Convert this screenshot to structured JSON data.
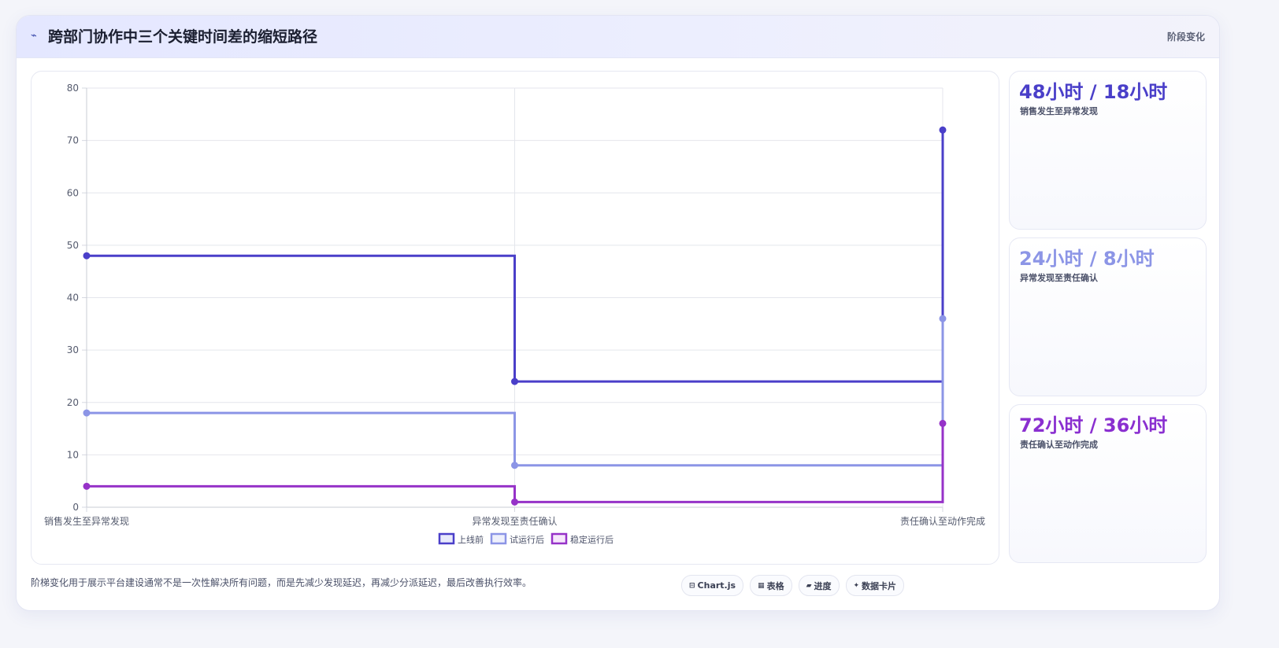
{
  "header": {
    "icon": "line-chart-icon",
    "title": "跨部门协作中三个关键时间差的缩短路径",
    "tag": "阶段变化"
  },
  "chart_data": {
    "type": "line",
    "stepped": true,
    "categories": [
      "销售发生至异常发现",
      "异常发现至责任确认",
      "责任确认至动作完成"
    ],
    "series": [
      {
        "name": "上线前",
        "values": [
          48,
          24,
          72
        ],
        "color": "#4a3fc9"
      },
      {
        "name": "试运行后",
        "values": [
          18,
          8,
          36
        ],
        "color": "#8c95e6"
      },
      {
        "name": "稳定运行后",
        "values": [
          4,
          1,
          16
        ],
        "color": "#9632c8"
      }
    ],
    "ylim": [
      0,
      80
    ],
    "yticks": [
      0,
      10,
      20,
      30,
      40,
      50,
      60,
      70,
      80
    ],
    "grid": true,
    "legend_position": "bottom"
  },
  "stats": [
    {
      "value": "48小时 / 18小时",
      "label": "销售发生至异常发现",
      "color": "#4a3fc9"
    },
    {
      "value": "24小时 / 8小时",
      "label": "异常发现至责任确认",
      "color": "#8c95e6"
    },
    {
      "value": "72小时 / 36小时",
      "label": "责任确认至动作完成",
      "color": "#8a2fd0"
    }
  ],
  "footer": {
    "note": "阶梯变化用于展示平台建设通常不是一次性解决所有问题，而是先减少发现延迟，再减少分派延迟，最后改善执行效率。"
  },
  "chips": [
    {
      "icon": "chart-icon",
      "glyph": "⊟",
      "label": "Chart.js"
    },
    {
      "icon": "table-icon",
      "glyph": "▦",
      "label": "表格"
    },
    {
      "icon": "progress-icon",
      "glyph": "▰",
      "label": "进度"
    },
    {
      "icon": "sparkle-icon",
      "glyph": "✦",
      "label": "数据卡片"
    }
  ]
}
